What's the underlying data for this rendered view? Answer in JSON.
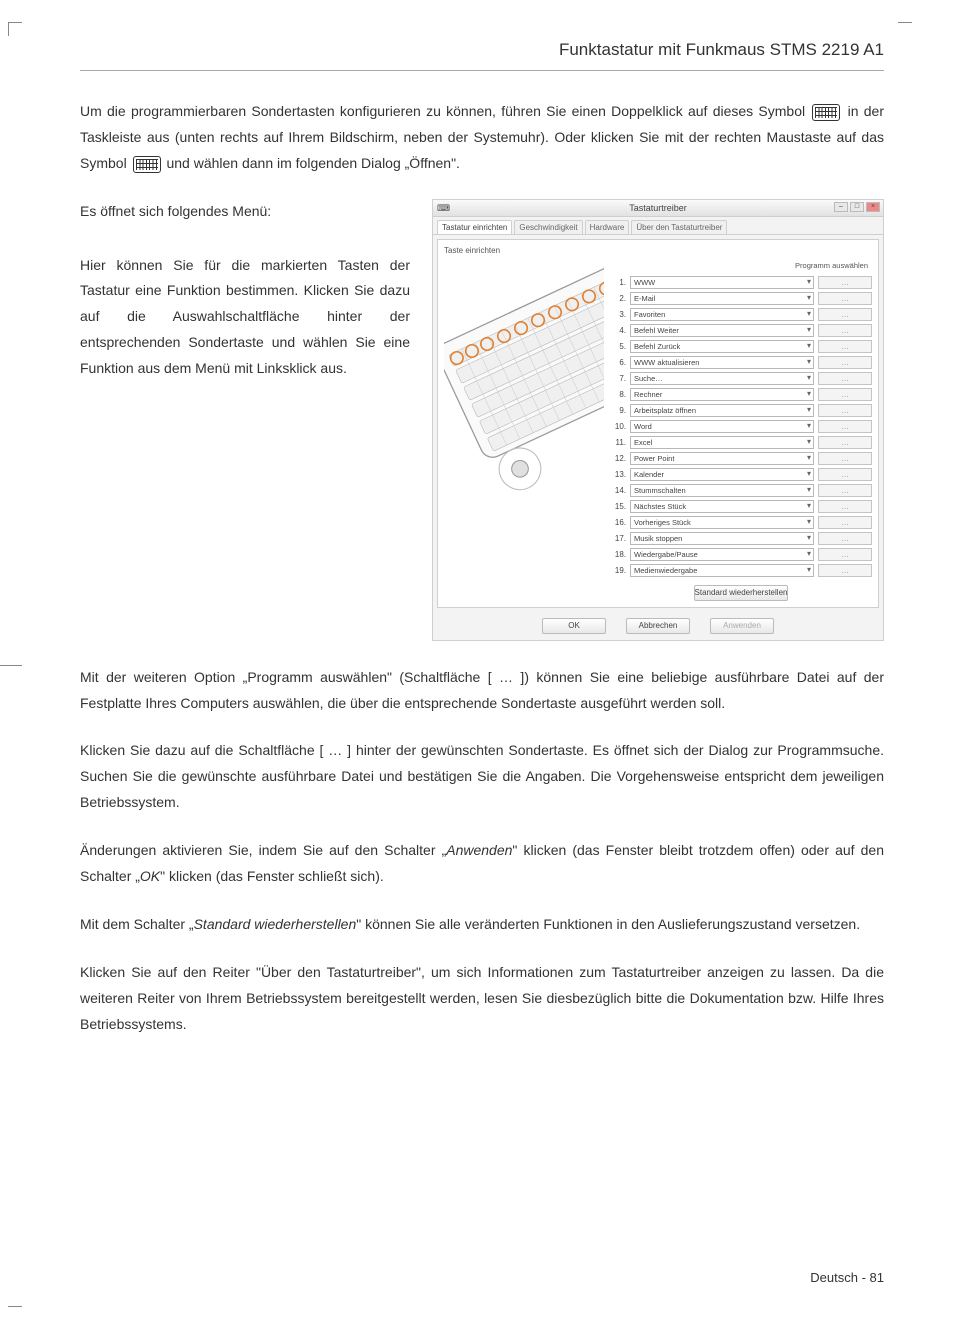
{
  "header": {
    "title": "Funktastatur mit Funkmaus STMS 2219 A1"
  },
  "p1_a": "Um die programmierbaren Sondertasten konfigurieren zu können, führen Sie einen Doppelklick auf dieses Symbol ",
  "p1_b": " in der Taskleiste aus (unten rechts auf Ihrem Bildschirm, neben der Systemuhr). Oder klicken Sie mit der rechten Maustaste auf das Symbol ",
  "p1_c": " und wählen dann im folgenden Dialog „Öffnen\".",
  "p2": "Es öffnet sich folgendes Menü:",
  "p3": "Hier können Sie für die markierten Tasten der Tastatur eine Funktion bestimmen. Klicken Sie dazu auf die Auswahlschaltfläche hinter der entsprechenden Sondertaste und wählen Sie eine Funktion aus dem Menü mit Linksklick aus.",
  "p4_a": "Mit der weiteren Option „Programm auswählen\" (Schaltfläche [ ",
  "p4_b": " ]) können Sie eine beliebige ausführbare Datei auf der Festplatte Ihres Computers auswählen, die über die entsprechende Sondertaste ausgeführt werden soll.",
  "ellipsis": "…",
  "p5": "Klicken Sie dazu auf die Schaltfläche [ … ] hinter der gewünschten Sondertaste. Es öffnet sich der Dialog zur Programmsuche. Suchen Sie die gewünschte ausführbare Datei und bestätigen Sie die Angaben. Die Vorgehensweise entspricht dem jeweiligen Betriebssystem.",
  "p6_a": "Änderungen aktivieren Sie, indem Sie auf den Schalter „",
  "p6_b": "Anwenden",
  "p6_c": "\" klicken (das Fenster bleibt trotzdem offen) oder auf den Schalter „",
  "p6_d": "OK",
  "p6_e": "\" klicken (das Fenster schließt sich).",
  "p7_a": "Mit dem Schalter „",
  "p7_b": "Standard wiederherstellen",
  "p7_c": "\" können Sie alle veränderten Funktionen in den Auslieferungszustand versetzen.",
  "p8": "Klicken Sie auf den Reiter \"Über den Tastaturtreiber\", um sich Informationen zum Tastaturtreiber anzeigen zu lassen. Da die weiteren Reiter von Ihrem Betriebssystem bereitgestellt werden, lesen Sie diesbezüglich bitte die Dokumentation bzw. Hilfe Ihres Betriebssystems.",
  "footer": {
    "lang": "Deutsch",
    "sep": " - ",
    "page": "81"
  },
  "dialog": {
    "title": "Tastaturtreiber",
    "tabs": [
      "Tastatur einrichten",
      "Geschwindigkeit",
      "Hardware",
      "Über den Tastaturtreiber"
    ],
    "section": "Taste einrichten",
    "prog_col": "Programm auswählen",
    "rows": [
      {
        "n": "1.",
        "label": "WWW"
      },
      {
        "n": "2.",
        "label": "E-Mail"
      },
      {
        "n": "3.",
        "label": "Favoriten"
      },
      {
        "n": "4.",
        "label": "Befehl Weiter"
      },
      {
        "n": "5.",
        "label": "Befehl Zurück"
      },
      {
        "n": "6.",
        "label": "WWW aktualisieren"
      },
      {
        "n": "7.",
        "label": "Suche…"
      },
      {
        "n": "8.",
        "label": "Rechner"
      },
      {
        "n": "9.",
        "label": "Arbeitsplatz öffnen"
      },
      {
        "n": "10.",
        "label": "Word"
      },
      {
        "n": "11.",
        "label": "Excel"
      },
      {
        "n": "12.",
        "label": "Power Point"
      },
      {
        "n": "13.",
        "label": "Kalender"
      },
      {
        "n": "14.",
        "label": "Stummschalten"
      },
      {
        "n": "15.",
        "label": "Nächstes Stück"
      },
      {
        "n": "16.",
        "label": "Vorheriges Stück"
      },
      {
        "n": "17.",
        "label": "Musik stoppen"
      },
      {
        "n": "18.",
        "label": "Wiedergabe/Pause"
      },
      {
        "n": "19.",
        "label": "Medienwiedergabe"
      }
    ],
    "prog_btn": "…",
    "restore": "Standard wiederherstellen",
    "ok": "OK",
    "cancel": "Abbrechen",
    "apply": "Anwenden"
  }
}
